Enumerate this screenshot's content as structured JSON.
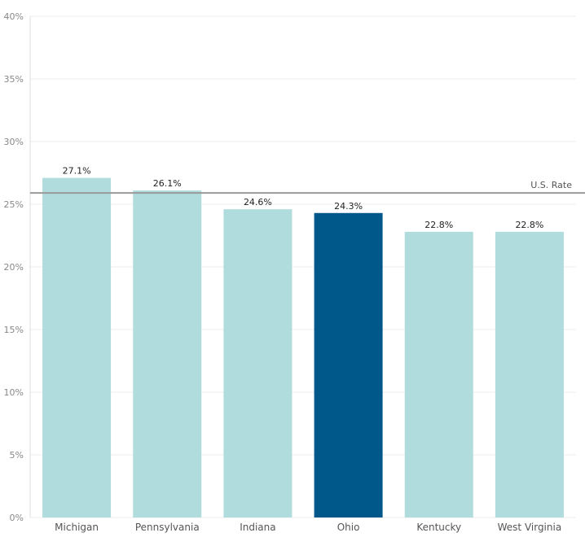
{
  "chart_data": {
    "type": "bar",
    "title": "",
    "xlabel": "",
    "ylabel": "",
    "categories": [
      "Michigan",
      "Pennsylvania",
      "Indiana",
      "Ohio",
      "Kentucky",
      "West Virginia"
    ],
    "values": [
      27.1,
      26.1,
      24.6,
      24.3,
      22.8,
      22.8
    ],
    "data_labels": [
      "27.1%",
      "26.1%",
      "24.6%",
      "24.3%",
      "22.8%",
      "22.8%"
    ],
    "highlight": "Ohio",
    "ylim": [
      0,
      40
    ],
    "yticks": [
      0,
      5,
      10,
      15,
      20,
      25,
      30,
      35,
      40
    ],
    "ytick_labels": [
      "0%",
      "5%",
      "10%",
      "15%",
      "20%",
      "25%",
      "30%",
      "35%",
      "40%"
    ],
    "reference_line": {
      "label": "U.S. Rate",
      "value": 25.9
    },
    "grid": true,
    "colors": {
      "bar": "#b0dcde",
      "highlight": "#00578a",
      "reference": "#999999",
      "grid": "#eeeeee"
    }
  }
}
